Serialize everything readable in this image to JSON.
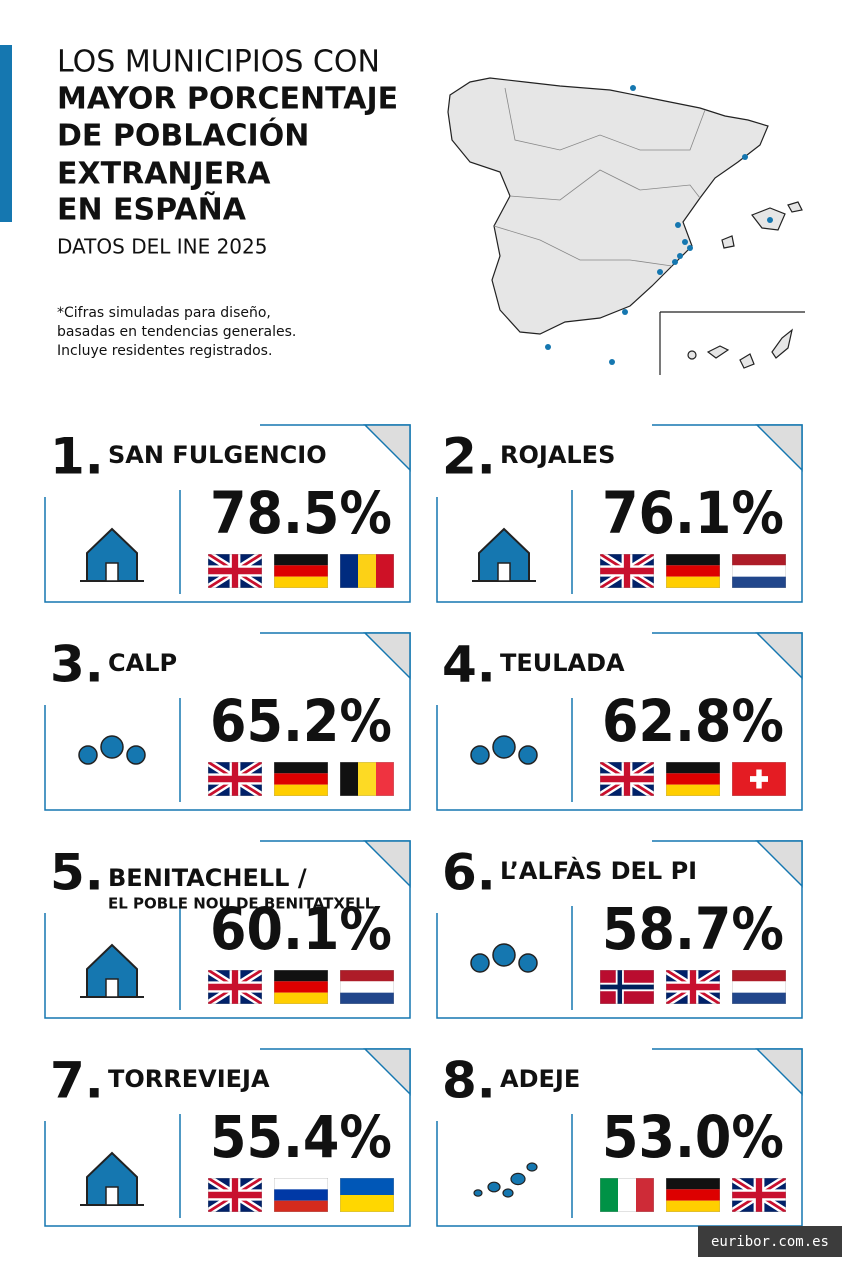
{
  "header": {
    "title_lines": [
      "LOS MUNICIPIOS CON",
      "MAYOR PORCENTAJE",
      "DE POBLACIÓN",
      "EXTRANJERA",
      "EN ESPAÑA"
    ],
    "subtitle": "DATOS DEL INE 2025",
    "note_lines": [
      "*Cifras simuladas para diseño,",
      "basadas en tendencias generales.",
      "Incluye residentes registrados."
    ]
  },
  "rankings": [
    {
      "rank": "1.",
      "name_lines": [
        "SAN FULGENCIO"
      ],
      "value": "78.5%"
    },
    {
      "rank": "2.",
      "name_lines": [
        "ROJALES"
      ],
      "value": "76.1%"
    },
    {
      "rank": "3.",
      "name_lines": [
        "CALP"
      ],
      "value": "65.2%"
    },
    {
      "rank": "4.",
      "name_lines": [
        "TEULADA"
      ],
      "value": "62.8%"
    },
    {
      "rank": "5.",
      "name_lines": [
        "BENITACHELL /",
        "EL POBLE NOU DE BENITATXELL"
      ],
      "value": "60.1%"
    },
    {
      "rank": "6.",
      "name_lines": [
        "L’ALFÀS DEL PI"
      ],
      "value": "58.7%"
    },
    {
      "rank": "7.",
      "name_lines": [
        "TORREVIEJA"
      ],
      "value": "55.4%"
    },
    {
      "rank": "8.",
      "name_lines": [
        "ADEJE"
      ],
      "value": "53.0%"
    }
  ],
  "footer": {
    "source": "euribor.com.es"
  }
}
